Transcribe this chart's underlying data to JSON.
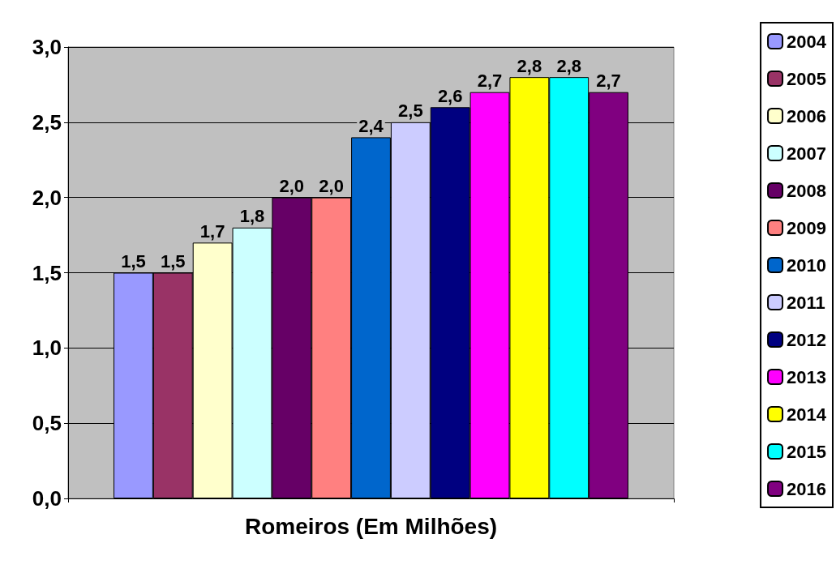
{
  "chart_data": {
    "type": "bar",
    "categories": [
      "Romeiros (Em Milhões)"
    ],
    "series": [
      {
        "name": "2004",
        "color": "#9999ff",
        "values": [
          1.5
        ],
        "value_labels": [
          "1,5"
        ]
      },
      {
        "name": "2005",
        "color": "#993366",
        "values": [
          1.5
        ],
        "value_labels": [
          "1,5"
        ]
      },
      {
        "name": "2006",
        "color": "#ffffcc",
        "values": [
          1.7
        ],
        "value_labels": [
          "1,7"
        ]
      },
      {
        "name": "2007",
        "color": "#ccffff",
        "values": [
          1.8
        ],
        "value_labels": [
          "1,8"
        ]
      },
      {
        "name": "2008",
        "color": "#660066",
        "values": [
          2.0
        ],
        "value_labels": [
          "2,0"
        ]
      },
      {
        "name": "2009",
        "color": "#ff8080",
        "values": [
          2.0
        ],
        "value_labels": [
          "2,0"
        ]
      },
      {
        "name": "2010",
        "color": "#0066cc",
        "values": [
          2.4
        ],
        "value_labels": [
          "2,4"
        ]
      },
      {
        "name": "2011",
        "color": "#ccccff",
        "values": [
          2.5
        ],
        "value_labels": [
          "2,5"
        ]
      },
      {
        "name": "2012",
        "color": "#000080",
        "values": [
          2.6
        ],
        "value_labels": [
          "2,6"
        ]
      },
      {
        "name": "2013",
        "color": "#ff00ff",
        "values": [
          2.7
        ],
        "value_labels": [
          "2,7"
        ]
      },
      {
        "name": "2014",
        "color": "#ffff00",
        "values": [
          2.8
        ],
        "value_labels": [
          "2,8"
        ]
      },
      {
        "name": "2015",
        "color": "#00ffff",
        "values": [
          2.8
        ],
        "value_labels": [
          "2,8"
        ]
      },
      {
        "name": "2016",
        "color": "#800080",
        "values": [
          2.7
        ],
        "value_labels": [
          "2,7"
        ]
      }
    ],
    "ylim": [
      0,
      3
    ],
    "yticks": [
      {
        "value": 0,
        "label": "0,0"
      },
      {
        "value": 0.5,
        "label": "0,5"
      },
      {
        "value": 1,
        "label": "1,0"
      },
      {
        "value": 1.5,
        "label": "1,5"
      },
      {
        "value": 2,
        "label": "2,0"
      },
      {
        "value": 2.5,
        "label": "2,5"
      },
      {
        "value": 3,
        "label": "3,0"
      }
    ],
    "grid": "y",
    "legend": "right"
  }
}
